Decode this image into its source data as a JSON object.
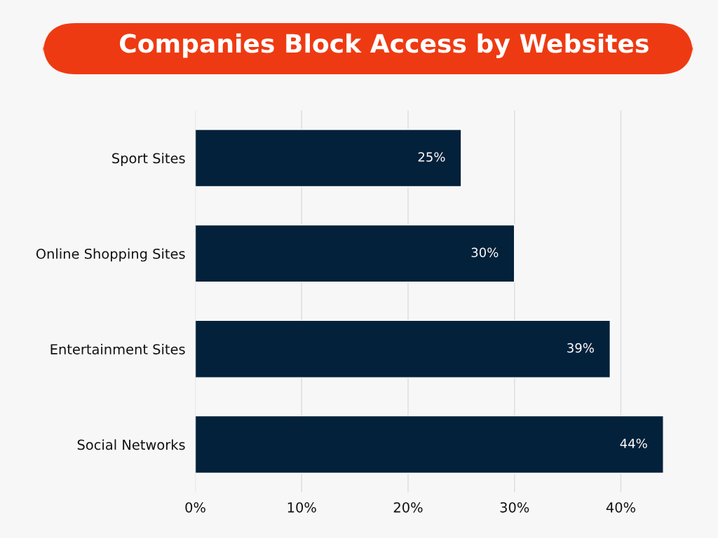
{
  "chart_data": {
    "type": "bar",
    "title": "Companies Block Access by Websites",
    "orientation": "horizontal",
    "categories": [
      "Sport Sites",
      "Online Shopping Sites",
      "Entertainment Sites",
      "Social Networks"
    ],
    "values": [
      25,
      30,
      39,
      44
    ],
    "value_labels": [
      "25%",
      "30%",
      "39%",
      "44%"
    ],
    "color": "#03213a",
    "xlim": [
      0,
      44
    ],
    "xticks": [
      {
        "value": 0,
        "label": "0%"
      },
      {
        "value": 10,
        "label": "10%"
      },
      {
        "value": 20,
        "label": "20%"
      },
      {
        "value": 30,
        "label": "30%"
      },
      {
        "value": 40,
        "label": "40%"
      }
    ],
    "grid": "x",
    "legend": false
  }
}
